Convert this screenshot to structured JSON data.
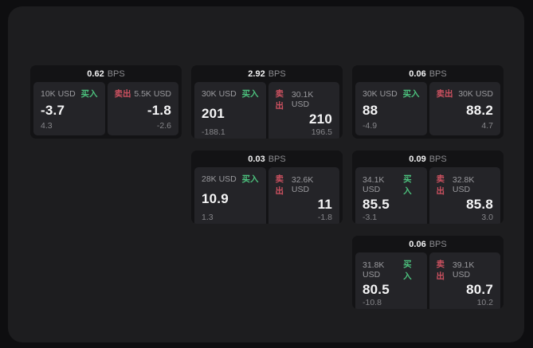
{
  "labels": {
    "bps": "BPS",
    "buy": "买入",
    "sell": "卖出"
  },
  "colors": {
    "page_background": "#0e0e10",
    "panel_background": "#1d1d1f",
    "card_background": "#131315",
    "tile_background": "#242428",
    "buy_green": "#4cc17d",
    "sell_red": "#cd5160",
    "value_white": "#f5f5f6",
    "muted_gray": "#9a9a9e"
  },
  "cards": [
    {
      "col": 1,
      "row": 1,
      "bps": "0.62",
      "buy_amount": "10K USD",
      "buy_value": "-3.7",
      "buy_sub": "4.3",
      "sell_amount": "5.5K USD",
      "sell_value": "-1.8",
      "sell_sub": "-2.6"
    },
    {
      "col": 2,
      "row": 1,
      "bps": "2.92",
      "buy_amount": "30K USD",
      "buy_value": "201",
      "buy_sub": "-188.1",
      "sell_amount": "30.1K USD",
      "sell_value": "210",
      "sell_sub": "196.5"
    },
    {
      "col": 3,
      "row": 1,
      "bps": "0.06",
      "buy_amount": "30K USD",
      "buy_value": "88",
      "buy_sub": "-4.9",
      "sell_amount": "30K USD",
      "sell_value": "88.2",
      "sell_sub": "4.7"
    },
    {
      "col": 2,
      "row": 2,
      "bps": "0.03",
      "buy_amount": "28K USD",
      "buy_value": "10.9",
      "buy_sub": "1.3",
      "sell_amount": "32.6K USD",
      "sell_value": "11",
      "sell_sub": "-1.8"
    },
    {
      "col": 3,
      "row": 2,
      "bps": "0.09",
      "buy_amount": "34.1K USD",
      "buy_value": "85.5",
      "buy_sub": "-3.1",
      "sell_amount": "32.8K USD",
      "sell_value": "85.8",
      "sell_sub": "3.0"
    },
    {
      "col": 3,
      "row": 3,
      "bps": "0.06",
      "buy_amount": "31.8K USD",
      "buy_value": "80.5",
      "buy_sub": "-10.8",
      "sell_amount": "39.1K USD",
      "sell_value": "80.7",
      "sell_sub": "10.2"
    }
  ]
}
